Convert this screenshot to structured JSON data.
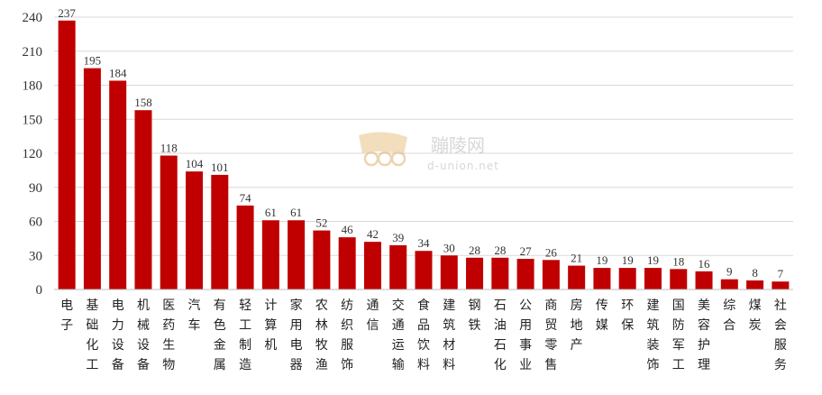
{
  "chart_data": {
    "type": "bar",
    "categories": [
      "电子",
      "基础化工",
      "电力设备",
      "机械设备",
      "医药生物",
      "汽车",
      "有色金属",
      "轻工制造",
      "计算机",
      "家用电器",
      "农林牧渔",
      "纺织服饰",
      "通信",
      "交通运输",
      "食品饮料",
      "建筑材料",
      "钢铁",
      "石油石化",
      "公用事业",
      "商贸零售",
      "房地产",
      "传媒",
      "环保",
      "建筑装饰",
      "国防军工",
      "美容护理",
      "综合",
      "煤炭",
      "社会服务"
    ],
    "values": [
      237,
      195,
      184,
      158,
      118,
      104,
      101,
      74,
      61,
      61,
      52,
      46,
      42,
      39,
      34,
      30,
      28,
      28,
      27,
      26,
      21,
      19,
      19,
      19,
      18,
      16,
      9,
      8,
      7
    ],
    "ylim": [
      0,
      240
    ],
    "yticks": [
      0,
      30,
      60,
      90,
      120,
      150,
      180,
      210,
      240
    ],
    "grid": true,
    "bar_color": "#c00000",
    "title": "",
    "xlabel": "",
    "ylabel": ""
  },
  "watermark": {
    "name": "蹦陵网",
    "site": "d-union.net"
  }
}
